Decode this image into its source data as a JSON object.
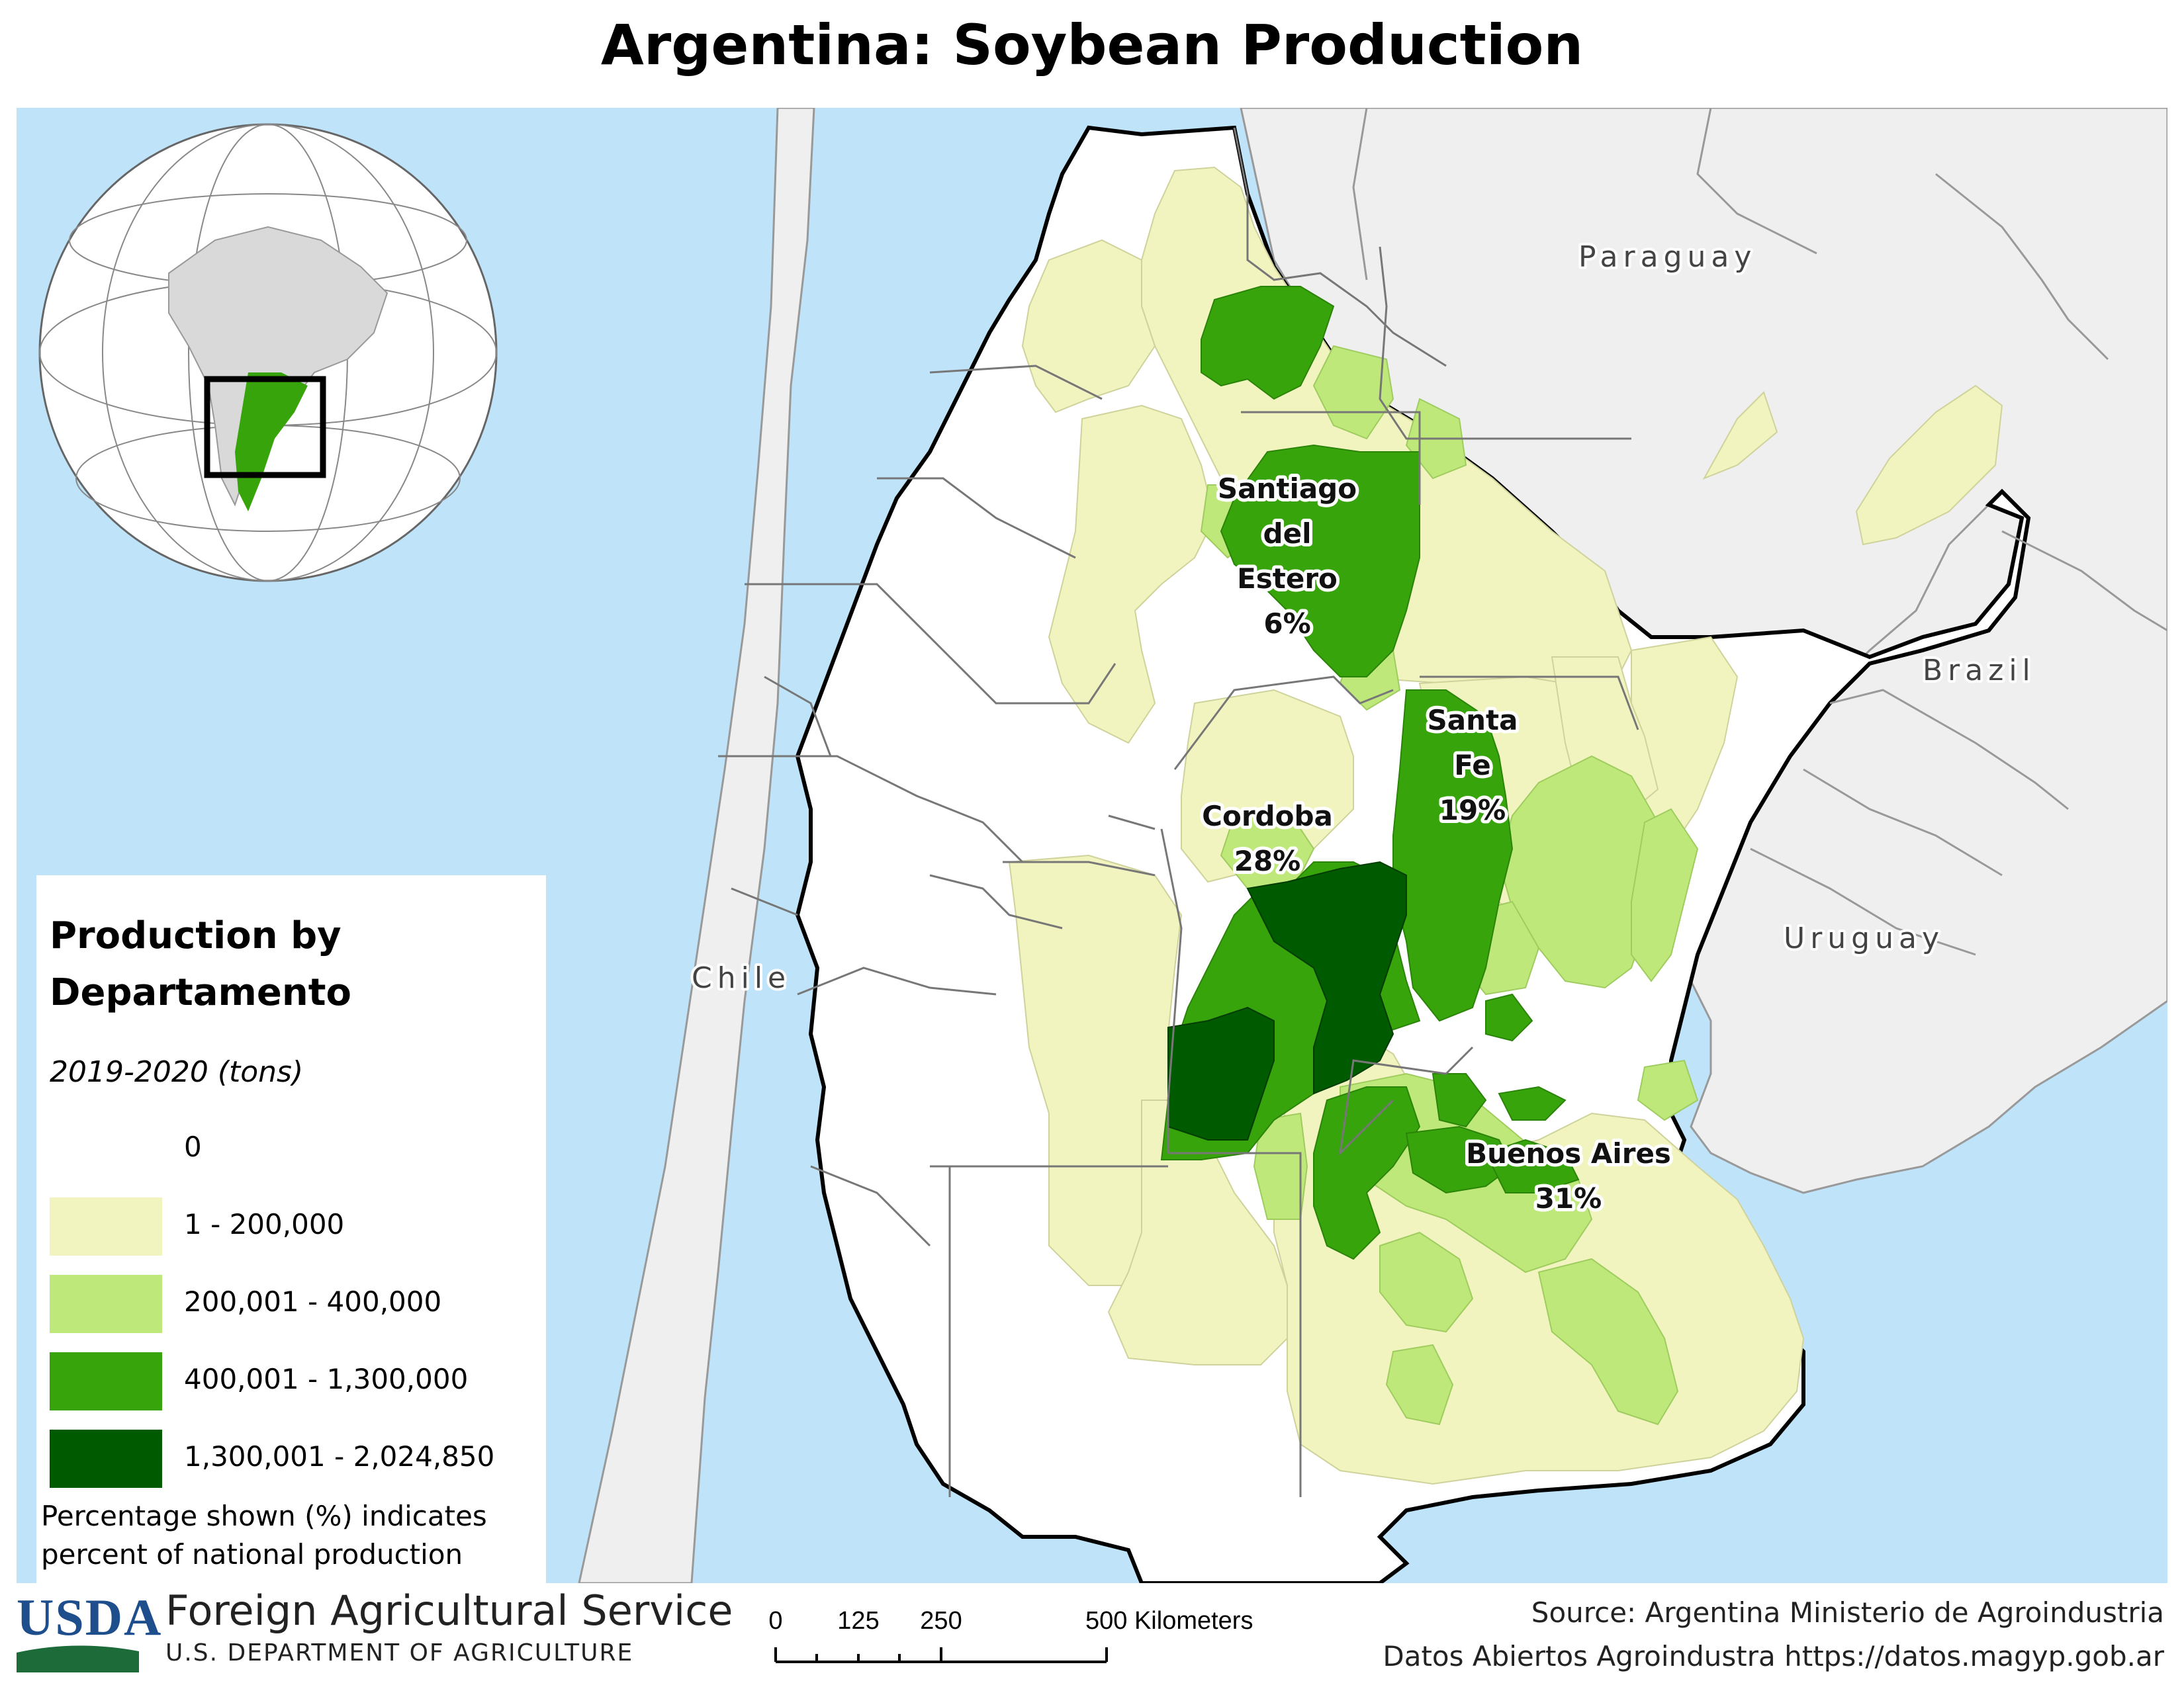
{
  "title": "Argentina: Soybean Production",
  "countries": {
    "paraguay": "Paraguay",
    "brazil": "Brazil",
    "uruguay": "Uruguay",
    "chile": "Chile"
  },
  "provinces": {
    "santiago": {
      "name_lines": [
        "Santiago",
        "del",
        "Estero"
      ],
      "share": "6%"
    },
    "santa_fe": {
      "name_lines": [
        "Santa",
        "Fe"
      ],
      "share": "19%"
    },
    "cordoba": {
      "name_lines": [
        "Cordoba"
      ],
      "share": "28%"
    },
    "buenos_aires": {
      "name_lines": [
        "Buenos Aires"
      ],
      "share": "31%"
    }
  },
  "legend": {
    "title": "Production by Departamento",
    "subtitle": "2019-2020 (tons)",
    "classes": [
      {
        "label": "0",
        "color": "#ffffff"
      },
      {
        "label": "1 - 200,000",
        "color": "#f2f4c0"
      },
      {
        "label": "200,001 - 400,000",
        "color": "#bfe87a"
      },
      {
        "label": "400,001 - 1,300,000",
        "color": "#38a40c"
      },
      {
        "label": "1,300,001 - 2,024,850",
        "color": "#005a00"
      }
    ],
    "note": "Percentage shown (%) indicates percent of national production"
  },
  "footer": {
    "usda": "USDA",
    "agency": "Foreign Agricultural Service",
    "department": "U.S. DEPARTMENT OF AGRICULTURE",
    "scale_ticks": [
      "0",
      "125",
      "250",
      "500 Kilometers"
    ],
    "source_line1": "Source: Argentina Ministerio de Agroindustria",
    "source_line2": "Datos Abiertos Agroindustra https://datos.magyp.gob.ar"
  },
  "colors": {
    "ocean": "#bfe4fa",
    "neighbor_land": "#efefef",
    "class_0": "#ffffff",
    "class_1": "#f2f4c0",
    "class_2": "#bfe87a",
    "class_3": "#38a40c",
    "class_4": "#005a00"
  }
}
